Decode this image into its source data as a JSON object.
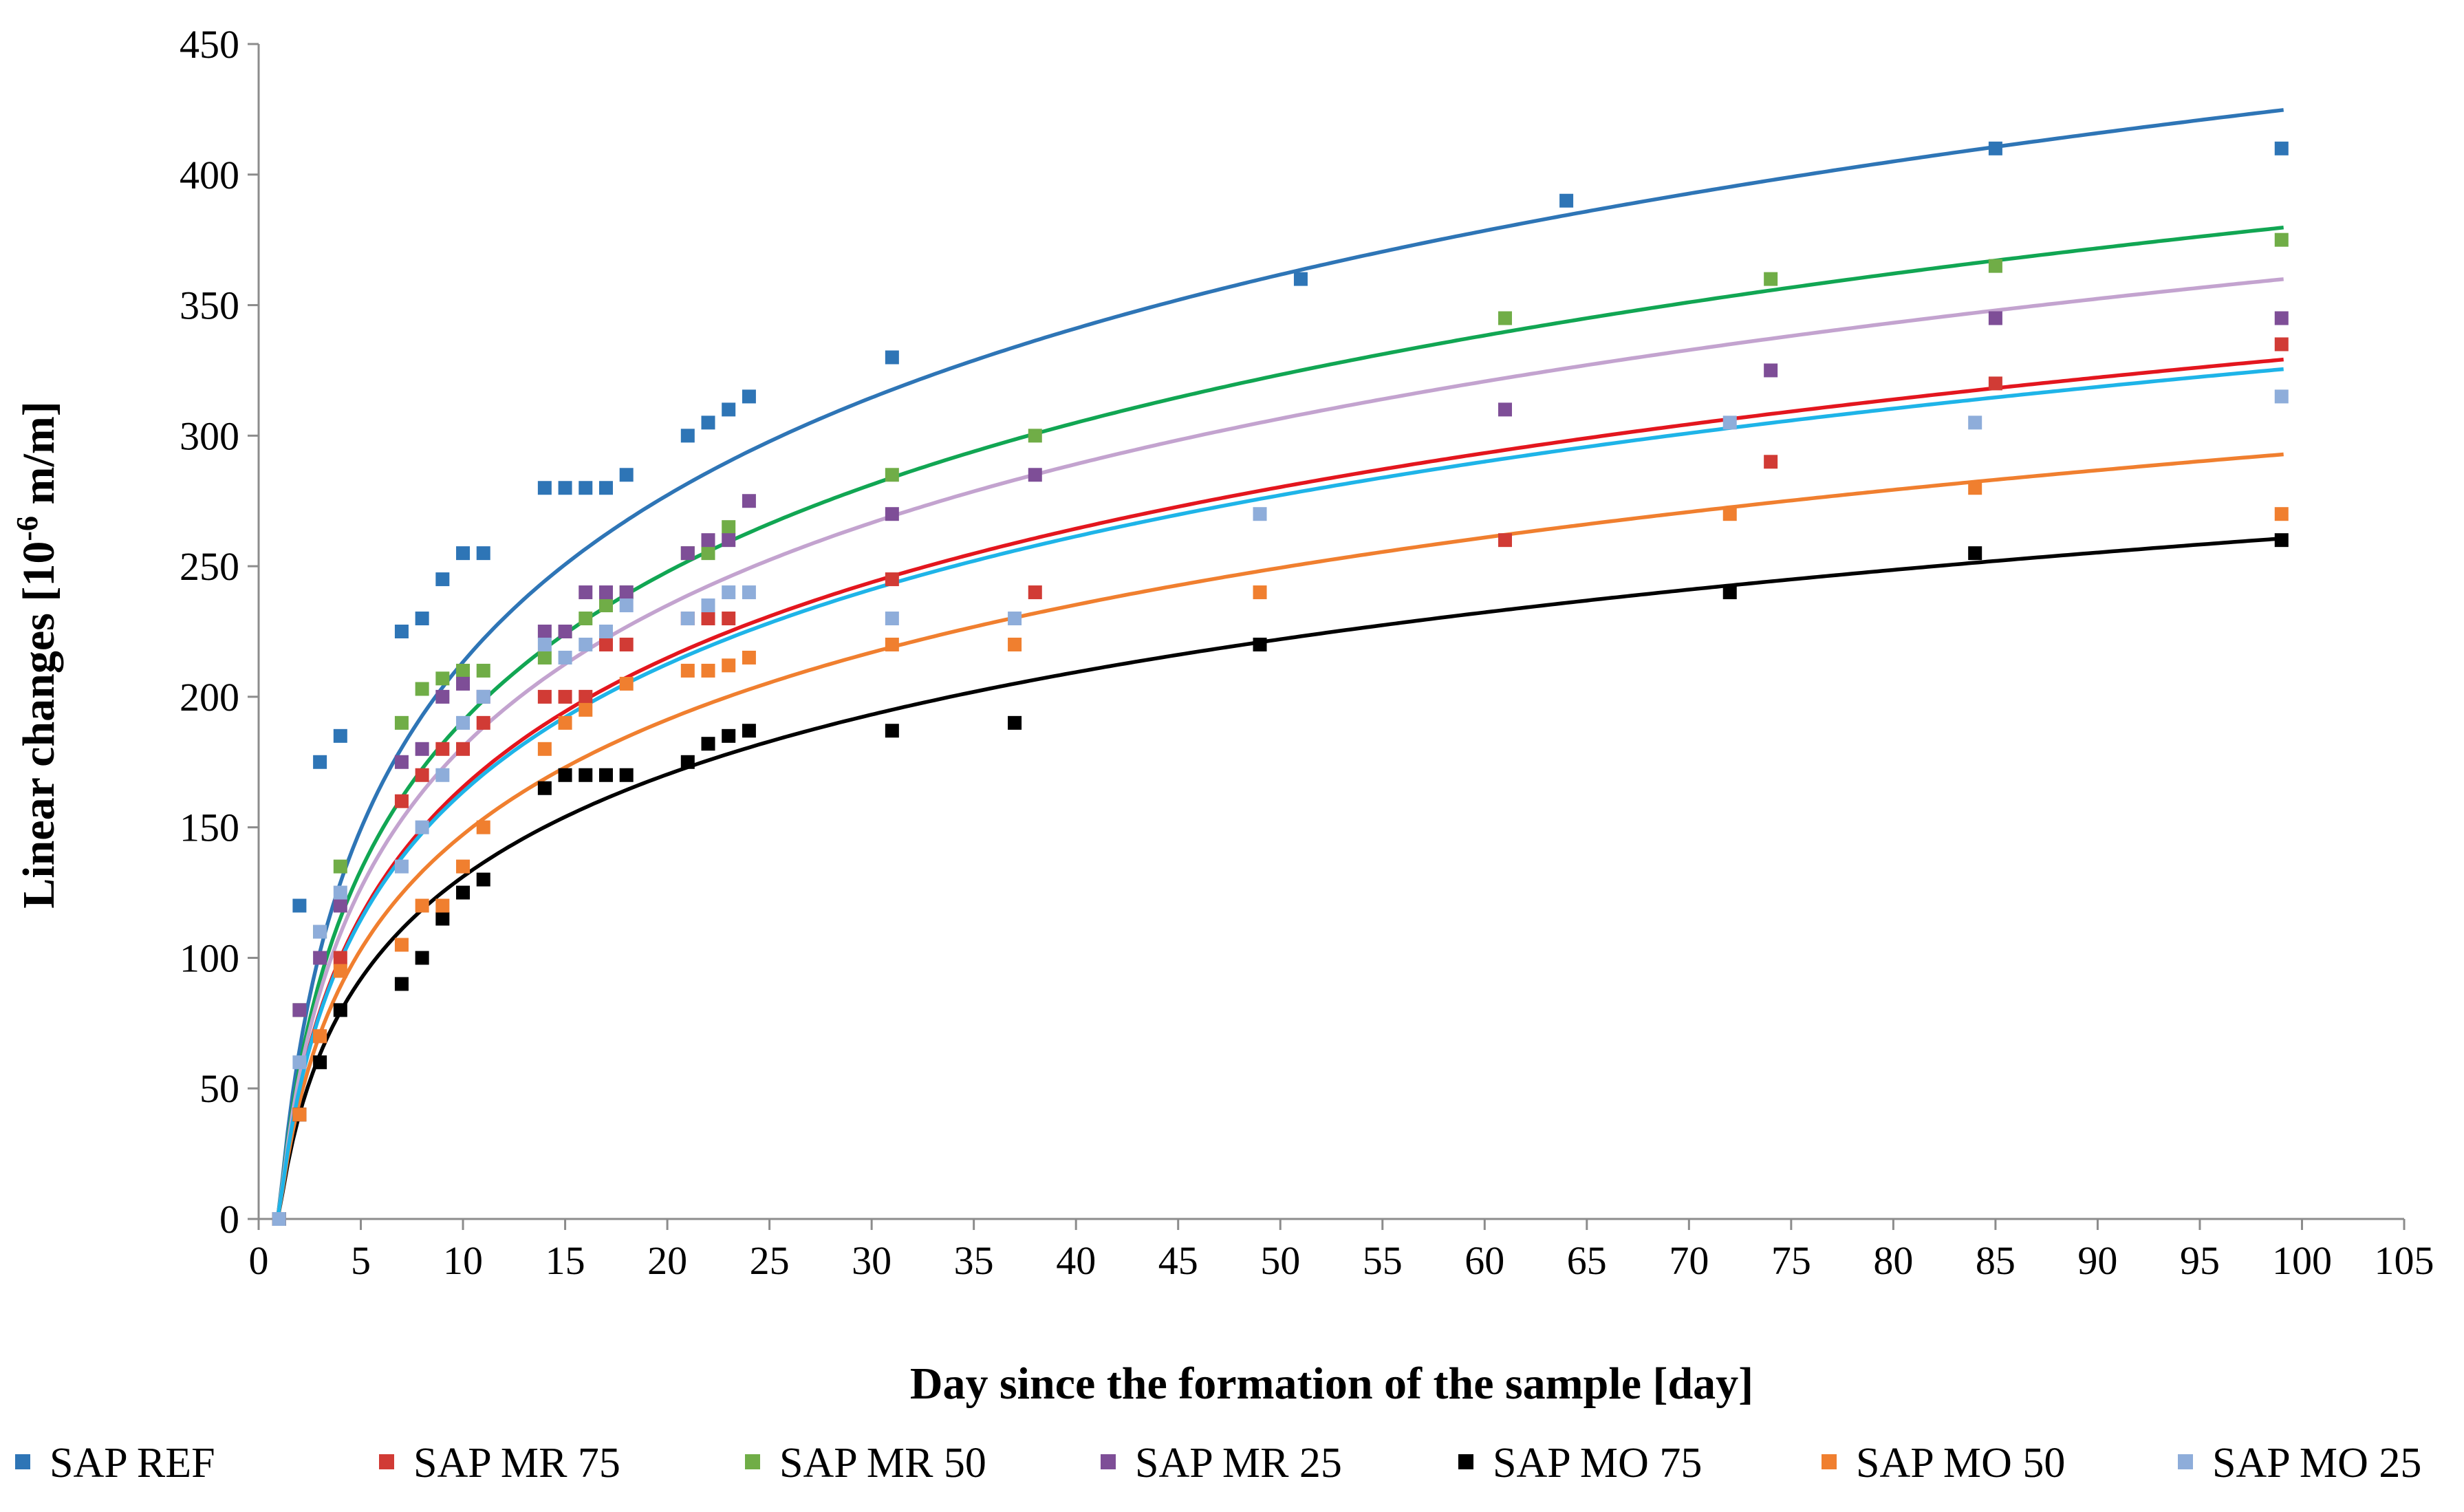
{
  "chart_data": {
    "type": "scatter",
    "title": "",
    "xlabel": "Day since the formation of the sample [day]",
    "ylabel_main": "Linear changes [10",
    "ylabel_sup": "-6",
    "ylabel_tail": " m/m]",
    "xlim": [
      0,
      105
    ],
    "ylim": [
      0,
      450
    ],
    "xticks": [
      0,
      5,
      10,
      15,
      20,
      25,
      30,
      35,
      40,
      45,
      50,
      55,
      60,
      65,
      70,
      75,
      80,
      85,
      90,
      95,
      100,
      105
    ],
    "yticks": [
      0,
      50,
      100,
      150,
      200,
      250,
      300,
      350,
      400,
      450
    ],
    "grid": false,
    "legend_position": "bottom",
    "trendline": "logarithmic",
    "series": [
      {
        "name": "SAP REF",
        "color": "#2E75B6",
        "trend_color": "#2E75B6",
        "trend": {
          "a": 92.2,
          "b": 1.0
        },
        "points": [
          [
            1,
            0
          ],
          [
            2,
            120
          ],
          [
            3,
            175
          ],
          [
            4,
            185
          ],
          [
            7,
            225
          ],
          [
            8,
            230
          ],
          [
            9,
            245
          ],
          [
            10,
            255
          ],
          [
            11,
            255
          ],
          [
            14,
            280
          ],
          [
            15,
            280
          ],
          [
            16,
            280
          ],
          [
            17,
            280
          ],
          [
            18,
            285
          ],
          [
            21,
            300
          ],
          [
            22,
            305
          ],
          [
            23,
            310
          ],
          [
            24,
            315
          ],
          [
            31,
            330
          ],
          [
            51,
            360
          ],
          [
            64,
            390
          ],
          [
            85,
            410
          ],
          [
            99,
            410
          ]
        ]
      },
      {
        "name": "SAP MR 75",
        "color": "#D13B35",
        "trend_color": "#E3161E",
        "trend": {
          "a": 71.4,
          "b": 1.0
        },
        "points": [
          [
            1,
            0
          ],
          [
            2,
            40
          ],
          [
            3,
            70
          ],
          [
            4,
            100
          ],
          [
            7,
            160
          ],
          [
            8,
            170
          ],
          [
            9,
            180
          ],
          [
            10,
            180
          ],
          [
            11,
            190
          ],
          [
            14,
            200
          ],
          [
            15,
            200
          ],
          [
            16,
            200
          ],
          [
            17,
            220
          ],
          [
            18,
            220
          ],
          [
            21,
            230
          ],
          [
            22,
            230
          ],
          [
            23,
            230
          ],
          [
            31,
            245
          ],
          [
            38,
            240
          ],
          [
            61,
            260
          ],
          [
            74,
            290
          ],
          [
            85,
            320
          ],
          [
            99,
            335
          ]
        ]
      },
      {
        "name": "SAP MR 50",
        "color": "#70AD47",
        "trend_color": "#11A653",
        "trend": {
          "a": 82.4,
          "b": 1.0
        },
        "points": [
          [
            1,
            0
          ],
          [
            2,
            80
          ],
          [
            3,
            110
          ],
          [
            4,
            135
          ],
          [
            7,
            190
          ],
          [
            8,
            203
          ],
          [
            9,
            207
          ],
          [
            10,
            210
          ],
          [
            11,
            210
          ],
          [
            14,
            215
          ],
          [
            15,
            225
          ],
          [
            16,
            230
          ],
          [
            17,
            235
          ],
          [
            18,
            240
          ],
          [
            21,
            255
          ],
          [
            22,
            255
          ],
          [
            23,
            265
          ],
          [
            31,
            285
          ],
          [
            38,
            300
          ],
          [
            61,
            345
          ],
          [
            74,
            360
          ],
          [
            85,
            365
          ],
          [
            99,
            375
          ]
        ]
      },
      {
        "name": "SAP MR 25",
        "color": "#7E4E97",
        "trend_color": "#C3A3CF",
        "trend": {
          "a": 78.1,
          "b": 1.0
        },
        "points": [
          [
            1,
            0
          ],
          [
            2,
            80
          ],
          [
            3,
            100
          ],
          [
            4,
            120
          ],
          [
            7,
            175
          ],
          [
            8,
            180
          ],
          [
            9,
            200
          ],
          [
            10,
            205
          ],
          [
            11,
            200
          ],
          [
            14,
            225
          ],
          [
            15,
            225
          ],
          [
            16,
            240
          ],
          [
            17,
            240
          ],
          [
            18,
            240
          ],
          [
            21,
            255
          ],
          [
            22,
            260
          ],
          [
            23,
            260
          ],
          [
            24,
            275
          ],
          [
            31,
            270
          ],
          [
            38,
            285
          ],
          [
            61,
            310
          ],
          [
            74,
            325
          ],
          [
            85,
            345
          ],
          [
            99,
            345
          ]
        ]
      },
      {
        "name": "SAP MO 75",
        "color": "#000000",
        "trend_color": "#000000",
        "trend": {
          "a": 56.5,
          "b": 1.0
        },
        "points": [
          [
            1,
            0
          ],
          [
            2,
            40
          ],
          [
            3,
            60
          ],
          [
            4,
            80
          ],
          [
            7,
            90
          ],
          [
            8,
            100
          ],
          [
            9,
            115
          ],
          [
            10,
            125
          ],
          [
            11,
            130
          ],
          [
            14,
            165
          ],
          [
            15,
            170
          ],
          [
            16,
            170
          ],
          [
            17,
            170
          ],
          [
            18,
            170
          ],
          [
            21,
            175
          ],
          [
            22,
            182
          ],
          [
            23,
            185
          ],
          [
            24,
            187
          ],
          [
            31,
            187
          ],
          [
            37,
            190
          ],
          [
            49,
            220
          ],
          [
            72,
            240
          ],
          [
            84,
            255
          ],
          [
            99,
            260
          ]
        ]
      },
      {
        "name": "SAP MO 50",
        "color": "#F07F2F",
        "trend_color": "#F07F2F",
        "trend": {
          "a": 63.5,
          "b": 1.0
        },
        "points": [
          [
            1,
            0
          ],
          [
            2,
            40
          ],
          [
            3,
            70
          ],
          [
            4,
            95
          ],
          [
            7,
            105
          ],
          [
            8,
            120
          ],
          [
            9,
            120
          ],
          [
            10,
            135
          ],
          [
            11,
            150
          ],
          [
            14,
            180
          ],
          [
            15,
            190
          ],
          [
            16,
            195
          ],
          [
            18,
            205
          ],
          [
            21,
            210
          ],
          [
            22,
            210
          ],
          [
            23,
            212
          ],
          [
            24,
            215
          ],
          [
            31,
            220
          ],
          [
            37,
            220
          ],
          [
            49,
            240
          ],
          [
            72,
            270
          ],
          [
            84,
            280
          ],
          [
            99,
            270
          ]
        ]
      },
      {
        "name": "SAP MO 25",
        "color": "#8EADDA",
        "trend_color": "#1EB4E8",
        "trend": {
          "a": 70.6,
          "b": 1.0
        },
        "points": [
          [
            1,
            0
          ],
          [
            2,
            60
          ],
          [
            3,
            110
          ],
          [
            4,
            125
          ],
          [
            7,
            135
          ],
          [
            8,
            150
          ],
          [
            9,
            170
          ],
          [
            10,
            190
          ],
          [
            11,
            200
          ],
          [
            14,
            220
          ],
          [
            15,
            215
          ],
          [
            16,
            220
          ],
          [
            17,
            225
          ],
          [
            18,
            235
          ],
          [
            21,
            230
          ],
          [
            22,
            235
          ],
          [
            23,
            240
          ],
          [
            24,
            240
          ],
          [
            31,
            230
          ],
          [
            37,
            230
          ],
          [
            49,
            270
          ],
          [
            72,
            305
          ],
          [
            84,
            305
          ],
          [
            99,
            315
          ]
        ]
      }
    ]
  }
}
